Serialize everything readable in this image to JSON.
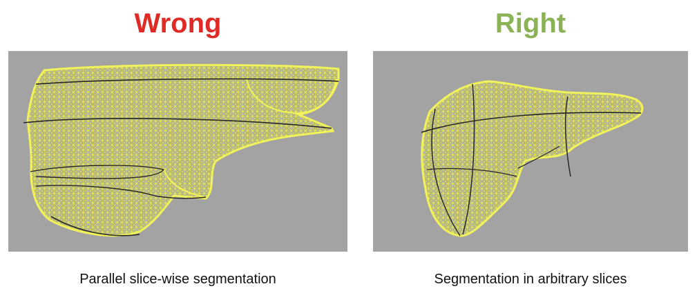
{
  "colors": {
    "wrong": "#e02a26",
    "right": "#8bb356",
    "panel_bg": "#a3a3a3",
    "mesh": "#eef04a",
    "contour": "#262626"
  },
  "left": {
    "heading": "Wrong",
    "caption": "Parallel slice-wise segmentation"
  },
  "right": {
    "heading": "Right",
    "caption": "Segmentation in arbitrary slices"
  }
}
